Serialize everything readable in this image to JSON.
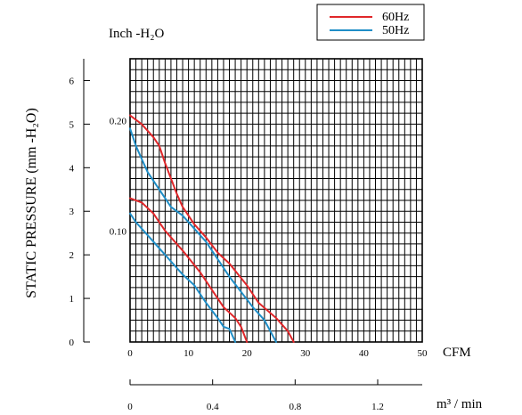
{
  "chart_data": {
    "type": "line",
    "y_axis_title": "STATIC PRESSURE (mm -H₂O)",
    "inch_axis_title": "Inch -H₂O",
    "x_unit_cfm": "CFM",
    "x_unit_m3": "m³ / min",
    "xlim_cfm": [
      0,
      50
    ],
    "ylim_mm": [
      0,
      6.5
    ],
    "grid": true,
    "legend_placement": "top-right",
    "y_ticks_mm": [
      "0",
      "1",
      "2",
      "3",
      "4",
      "5",
      "6"
    ],
    "x_ticks_cfm": [
      "0",
      "10",
      "20",
      "30",
      "40",
      "50"
    ],
    "inch_ticks": [
      {
        "label": "0.10",
        "mm": 2.54
      },
      {
        "label": "0.20",
        "mm": 5.08
      }
    ],
    "m3_ticks": [
      {
        "label": "0",
        "cfm": 0
      },
      {
        "label": "0.4",
        "cfm": 14.13
      },
      {
        "label": "0.8",
        "cfm": 28.25
      },
      {
        "label": "1.2",
        "cfm": 42.38
      }
    ],
    "series": [
      {
        "name": "60Hz",
        "color": "#e0272a",
        "curves": [
          [
            [
              0,
              5.2
            ],
            [
              2,
              5.0
            ],
            [
              4,
              4.7
            ],
            [
              5,
              4.5
            ],
            [
              6,
              4.1
            ],
            [
              8,
              3.4
            ],
            [
              9,
              3.1
            ],
            [
              11,
              2.7
            ],
            [
              13,
              2.4
            ],
            [
              15,
              2.05
            ],
            [
              17,
              1.8
            ],
            [
              20,
              1.3
            ],
            [
              22,
              0.9
            ],
            [
              25,
              0.55
            ],
            [
              27,
              0.25
            ],
            [
              28,
              0.0
            ]
          ],
          [
            [
              0,
              3.3
            ],
            [
              2,
              3.2
            ],
            [
              4,
              2.95
            ],
            [
              6,
              2.55
            ],
            [
              9,
              2.1
            ],
            [
              12,
              1.6
            ],
            [
              14,
              1.2
            ],
            [
              16,
              0.8
            ],
            [
              18,
              0.55
            ],
            [
              19,
              0.35
            ],
            [
              20,
              0.0
            ]
          ]
        ]
      },
      {
        "name": "50Hz",
        "color": "#1f8ec7",
        "curves": [
          [
            [
              0,
              4.9
            ],
            [
              1,
              4.5
            ],
            [
              2,
              4.2
            ],
            [
              3,
              3.9
            ],
            [
              5,
              3.5
            ],
            [
              7,
              3.1
            ],
            [
              9,
              2.9
            ],
            [
              11,
              2.6
            ],
            [
              13,
              2.3
            ],
            [
              15,
              1.9
            ],
            [
              17,
              1.5
            ],
            [
              19,
              1.15
            ],
            [
              21,
              0.8
            ],
            [
              23,
              0.5
            ],
            [
              24,
              0.25
            ],
            [
              25,
              0.0
            ]
          ],
          [
            [
              0,
              2.95
            ],
            [
              1,
              2.75
            ],
            [
              3,
              2.45
            ],
            [
              5,
              2.15
            ],
            [
              7,
              1.85
            ],
            [
              9,
              1.55
            ],
            [
              11,
              1.3
            ],
            [
              13,
              0.9
            ],
            [
              15,
              0.55
            ],
            [
              16,
              0.35
            ],
            [
              17,
              0.3
            ],
            [
              18,
              0.0
            ]
          ]
        ]
      }
    ]
  }
}
